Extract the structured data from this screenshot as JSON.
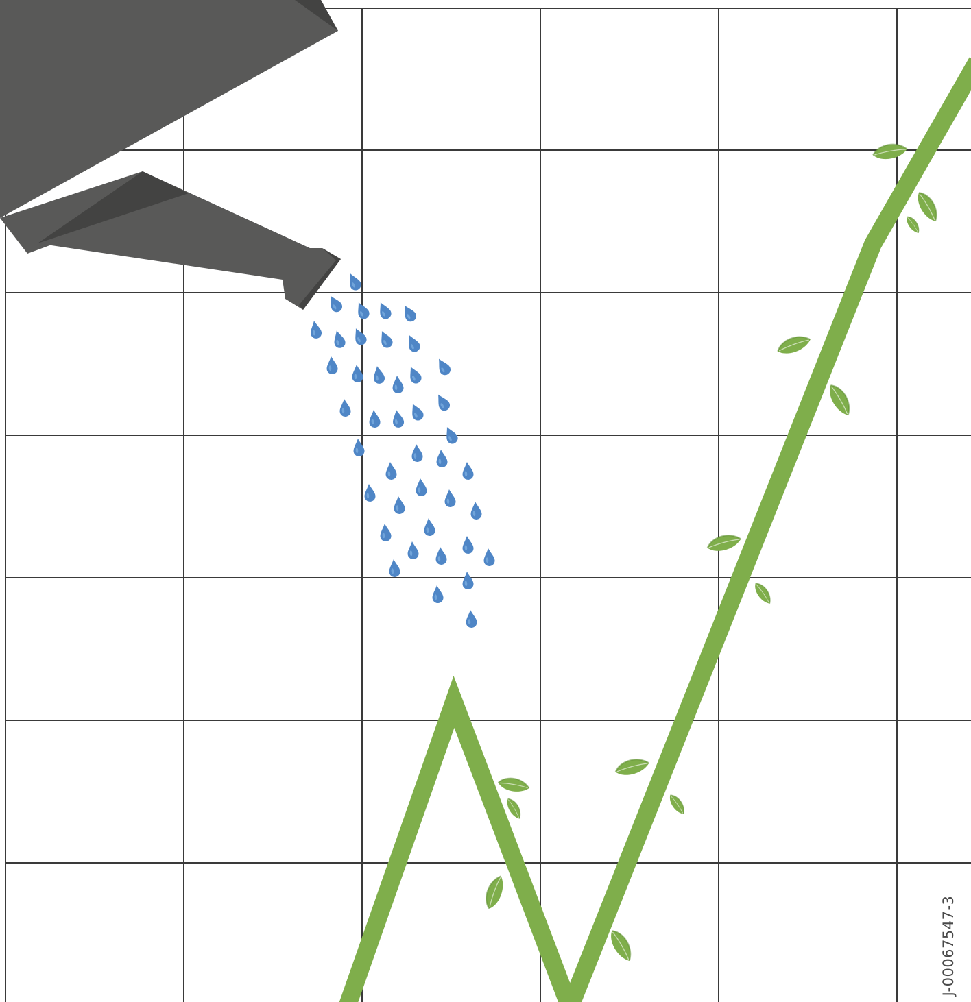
{
  "image_code": "J-00067547-3",
  "colors": {
    "background": "#ffffff",
    "grid": "#3a3a3a",
    "watering_can": "#595958",
    "watering_can_shadow": "#434342",
    "water_drop": "#4f86c6",
    "water_drop_highlight": "#7fb0e3",
    "stem": "#7fae4b",
    "leaf": "#7fae4b",
    "leaf_dark": "#5f8f33"
  },
  "icons": [
    "watering-can-icon",
    "water-drop-icon",
    "leaf-icon",
    "growth-line-icon"
  ]
}
